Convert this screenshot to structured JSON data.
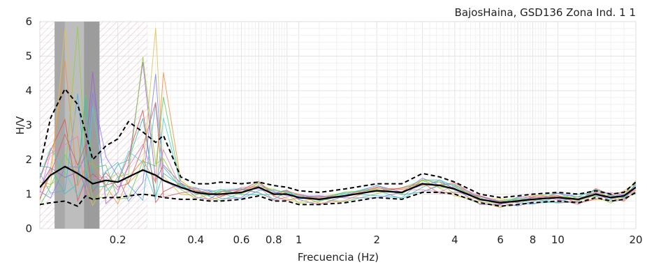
{
  "chart_data": {
    "type": "line",
    "title": "BajosHaina, GSD136 Zona Ind. 1 1",
    "xlabel": "Frecuencia (Hz)",
    "ylabel": "H/V",
    "x_scale": "log",
    "xlim": [
      0.1,
      20
    ],
    "ylim": [
      0,
      6
    ],
    "x_tick_labels": [
      "0.2",
      "0.4",
      "0.6",
      "0.8",
      "1",
      "2",
      "4",
      "6",
      "8",
      "10",
      "20"
    ],
    "x_tick_values": [
      0.2,
      0.4,
      0.6,
      0.8,
      1,
      2,
      4,
      6,
      8,
      10,
      20
    ],
    "y_tick_labels": [
      "0",
      "1",
      "2",
      "3",
      "4",
      "5",
      "6"
    ],
    "y_tick_values": [
      0,
      1,
      2,
      3,
      4,
      5,
      6
    ],
    "grid": true,
    "rejected_band_hz": [
      0.1,
      0.26
    ],
    "excluded_windows_hz": [
      [
        0.125,
        0.148
      ],
      [
        0.148,
        0.17
      ]
    ],
    "x": [
      0.1,
      0.11,
      0.125,
      0.14,
      0.15,
      0.16,
      0.18,
      0.2,
      0.22,
      0.25,
      0.28,
      0.3,
      0.35,
      0.4,
      0.45,
      0.5,
      0.6,
      0.7,
      0.8,
      0.9,
      1,
      1.2,
      1.5,
      2,
      2.5,
      3,
      3.5,
      4,
      5,
      6,
      7,
      8,
      10,
      12,
      14,
      16,
      18,
      20
    ],
    "series": [
      {
        "values": [
          1.2,
          1.55,
          1.8,
          1.6,
          1.45,
          1.3,
          1.4,
          1.35,
          1.5,
          1.7,
          1.55,
          1.4,
          1.2,
          1.05,
          1.0,
          1.0,
          1.05,
          1.2,
          1.0,
          1.0,
          0.9,
          0.85,
          0.95,
          1.1,
          1.05,
          1.3,
          1.25,
          1.15,
          0.85,
          0.75,
          0.8,
          0.85,
          0.9,
          0.85,
          1.0,
          0.9,
          0.95,
          1.2
        ],
        "color": "#000000"
      },
      {
        "values": [
          1.8,
          3.2,
          4.05,
          3.6,
          2.8,
          2.0,
          2.4,
          2.6,
          3.1,
          2.8,
          2.5,
          2.7,
          1.5,
          1.3,
          1.3,
          1.35,
          1.3,
          1.35,
          1.25,
          1.2,
          1.1,
          1.05,
          1.15,
          1.3,
          1.3,
          1.6,
          1.5,
          1.35,
          1.0,
          0.9,
          0.95,
          1.0,
          1.05,
          1.0,
          1.1,
          1.0,
          1.05,
          1.35
        ],
        "color": "#000000"
      },
      {
        "values": [
          0.7,
          0.75,
          0.8,
          0.65,
          0.95,
          0.85,
          0.9,
          0.9,
          0.95,
          1.0,
          0.95,
          0.9,
          0.85,
          0.85,
          0.8,
          0.8,
          0.85,
          0.95,
          0.8,
          0.8,
          0.7,
          0.7,
          0.75,
          0.9,
          0.85,
          1.05,
          1.05,
          1.0,
          0.75,
          0.65,
          0.7,
          0.75,
          0.8,
          0.75,
          0.9,
          0.8,
          0.85,
          1.05
        ],
        "color": "#000000"
      }
    ],
    "window_curve_colors": [
      "#e05050",
      "#50b0e0",
      "#60d060",
      "#a060d0",
      "#e0c050",
      "#e080c0",
      "#40c0b0",
      "#8080f0",
      "#f09040",
      "#90d040",
      "#d06060",
      "#50d0d0"
    ]
  }
}
